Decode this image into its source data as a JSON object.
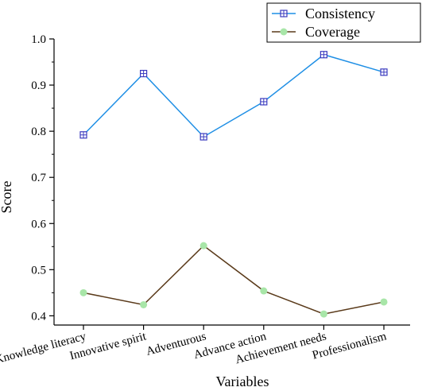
{
  "chart_data": {
    "type": "line",
    "title": "",
    "xlabel": "Variables",
    "ylabel": "Score",
    "categories": [
      "Knowledge literacy",
      "Innovative spirit",
      "Adventurous",
      "Advance action",
      "Achievement needs",
      "Professionalism"
    ],
    "y_ticks": [
      "0.4",
      "0.5",
      "0.6",
      "0.7",
      "0.8",
      "0.9",
      "1.0"
    ],
    "ylim": [
      0.38,
      1.0
    ],
    "grid": false,
    "legend_position": "top-right",
    "series": [
      {
        "name": "Consistency",
        "color": "#1f8fe5",
        "marker_color": "#3b3bbf",
        "marker": "square-cross",
        "values": [
          0.792,
          0.925,
          0.788,
          0.864,
          0.966,
          0.928
        ]
      },
      {
        "name": "Coverage",
        "color": "#5a3a1a",
        "marker_color": "#a8e6a8",
        "marker": "circle",
        "values": [
          0.45,
          0.424,
          0.552,
          0.454,
          0.404,
          0.43
        ]
      }
    ]
  }
}
